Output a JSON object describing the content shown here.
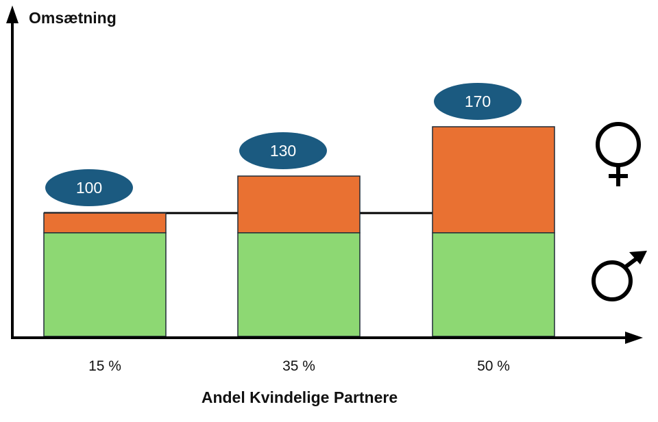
{
  "chart_data": {
    "type": "bar",
    "stacked": true,
    "ylabel": "Omsætning",
    "xlabel": "Andel Kvindelige Partnere",
    "categories": [
      "15 %",
      "35 %",
      "50 %"
    ],
    "series": [
      {
        "values": [
          84,
          84,
          84
        ],
        "color": "#8dd873"
      },
      {
        "values": [
          16,
          46,
          86
        ],
        "color": "#e97132"
      }
    ],
    "totals": [
      100,
      130,
      170
    ],
    "reference_line": 100,
    "ylim": [
      0,
      190
    ],
    "grid": false,
    "legend_symbols": [
      "female-symbol-icon",
      "male-symbol-icon"
    ],
    "bubble_color": "#1b5a80",
    "axis_color": "#000000"
  }
}
